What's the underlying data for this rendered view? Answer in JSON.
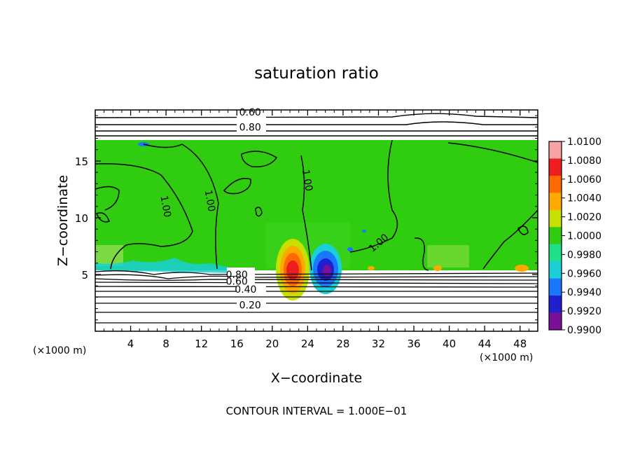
{
  "chart_data": {
    "type": "heatmap",
    "title": "saturation ratio",
    "xlabel": "X−coordinate",
    "ylabel": "Z−coordinate",
    "x_unit_left": "(×1000 m)",
    "x_unit_right": "(×1000 m)",
    "x_ticks": [
      "4",
      "8",
      "12",
      "16",
      "20",
      "24",
      "28",
      "32",
      "36",
      "40",
      "44",
      "48"
    ],
    "y_ticks": [
      "5",
      "10",
      "15"
    ],
    "xlim": [
      0,
      50
    ],
    "ylim": [
      0,
      19.5
    ],
    "contour_labels": [
      {
        "text": "0.60",
        "x": 17.5,
        "y": 19.3
      },
      {
        "text": "0.80",
        "x": 17.5,
        "y": 18.0
      },
      {
        "text": "1.00",
        "x": 8.0,
        "y": 11.0
      },
      {
        "text": "1.00",
        "x": 13.0,
        "y": 11.5
      },
      {
        "text": "1.00",
        "x": 24.0,
        "y": 13.3
      },
      {
        "text": "1.00",
        "x": 32.0,
        "y": 7.8
      },
      {
        "text": "0.80",
        "x": 16.0,
        "y": 5.0
      },
      {
        "text": "0.60",
        "x": 16.0,
        "y": 4.4
      },
      {
        "text": "0.40",
        "x": 17.0,
        "y": 3.7
      },
      {
        "text": "0.20",
        "x": 17.5,
        "y": 2.3
      }
    ],
    "colorbar": {
      "labels": [
        "1.0100",
        "1.0080",
        "1.0060",
        "1.0040",
        "1.0020",
        "1.0000",
        "0.9980",
        "0.9960",
        "0.9940",
        "0.9920",
        "0.9900"
      ],
      "colors": [
        "#f5a3a3",
        "#ee1e1e",
        "#ff6a00",
        "#ffa800",
        "#c8e000",
        "#2fcc0f",
        "#1ee08a",
        "#19d0d6",
        "#1a78ff",
        "#1f1fd0",
        "#7a109a"
      ]
    },
    "footer": "CONTOUR INTERVAL = 1.000E−01"
  }
}
